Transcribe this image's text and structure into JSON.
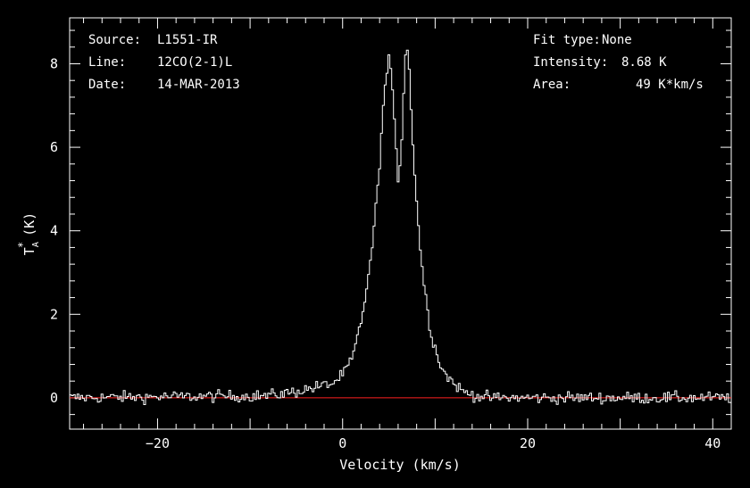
{
  "header": {
    "source_label": "Source:",
    "source_value": "L1551-IR",
    "line_label": "Line:",
    "line_value": "12CO(2-1)L",
    "date_label": "Date:",
    "date_value": "14-MAR-2013",
    "fit_label": "Fit type:",
    "fit_value": "None",
    "intensity_label": "Intensity:",
    "intensity_value": "8.68 K",
    "area_label": "Area:",
    "area_value": "49 K*km/s"
  },
  "colors": {
    "background": "#000000",
    "axes": "#ffffff",
    "spectrum": "#ffffff",
    "baseline": "#ff2020"
  },
  "chart_data": {
    "type": "line",
    "style": "step",
    "xlabel": "Velocity (km/s)",
    "ylabel_main": "T",
    "ylabel_sub": "A",
    "ylabel_sup": "*",
    "ylabel_unit": "(K)",
    "xlim": [
      -29.5,
      42
    ],
    "ylim": [
      -0.75,
      9.1
    ],
    "xticks_major": [
      -20,
      0,
      20,
      40
    ],
    "xtick_labels": [
      "−20",
      "0",
      "20",
      "40"
    ],
    "yticks_major": [
      0,
      2,
      4,
      6,
      8
    ],
    "ytick_labels": [
      "0",
      "2",
      "4",
      "6",
      "8"
    ],
    "baseline_y": 0,
    "channel_width": 0.2,
    "profile_anchors": {
      "x": [
        -30,
        -8,
        -5,
        -3,
        -1,
        0,
        1,
        2,
        3,
        3.8,
        4.5,
        5.0,
        5.3,
        5.6,
        6.0,
        6.3,
        6.6,
        6.9,
        7.2,
        7.5,
        8.0,
        8.5,
        9.0,
        9.5,
        10.0,
        10.5,
        11.0,
        12.0,
        13.0,
        14.5,
        16,
        42
      ],
      "y": [
        0,
        0.05,
        0.15,
        0.25,
        0.35,
        0.55,
        0.9,
        1.8,
        3.2,
        5.0,
        7.3,
        8.1,
        7.6,
        6.8,
        5.2,
        5.8,
        7.3,
        8.68,
        7.8,
        6.5,
        4.7,
        3.3,
        2.4,
        1.6,
        1.2,
        0.85,
        0.6,
        0.35,
        0.15,
        0.05,
        0,
        0
      ]
    },
    "noise_rms": 0.07
  }
}
